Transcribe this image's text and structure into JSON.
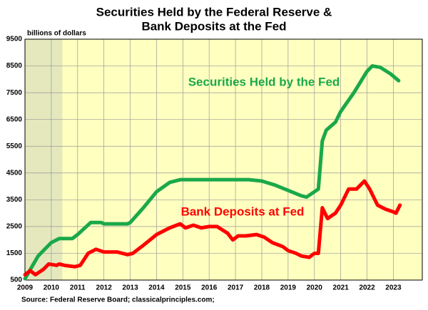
{
  "chart_data": {
    "type": "line",
    "title": [
      "Securities Held by the Federal Reserve &",
      "Bank Deposits at the Fed"
    ],
    "y_label": "billions of dollars",
    "source": "Source: Federal Reserve  Board; classicalprinciples.com;",
    "xlim": [
      2009,
      2024.1
    ],
    "xticks": [
      2009,
      2010,
      2011,
      2012,
      2013,
      2014,
      2015,
      2016,
      2017,
      2018,
      2019,
      2020,
      2021,
      2022,
      2023
    ],
    "ylim": [
      500,
      9500
    ],
    "yticks": [
      500,
      1500,
      2500,
      3500,
      4500,
      5500,
      6500,
      7500,
      8500,
      9500
    ],
    "grid": true,
    "shaded_range": [
      2009,
      2010.42
    ],
    "series": [
      {
        "name": "Securities Held by the Fed",
        "color": "#1aa84a",
        "x": [
          2009.0,
          2009.5,
          2010.0,
          2010.3,
          2010.8,
          2011.0,
          2011.5,
          2011.9,
          2012.0,
          2012.9,
          2013.0,
          2013.5,
          2014.0,
          2014.5,
          2014.9,
          2015.5,
          2016.5,
          2017.5,
          2018.0,
          2018.5,
          2019.0,
          2019.5,
          2019.7,
          2020.0,
          2020.15,
          2020.3,
          2020.45,
          2020.8,
          2021.0,
          2021.5,
          2022.0,
          2022.2,
          2022.5,
          2022.9,
          2023.2
        ],
        "values": [
          550,
          1400,
          1900,
          2050,
          2050,
          2200,
          2650,
          2650,
          2600,
          2600,
          2650,
          3200,
          3800,
          4150,
          4250,
          4250,
          4250,
          4250,
          4200,
          4050,
          3850,
          3650,
          3600,
          3800,
          3900,
          5700,
          6100,
          6400,
          6800,
          7500,
          8300,
          8500,
          8450,
          8200,
          7950
        ]
      },
      {
        "name": "Bank Deposits at Fed",
        "color": "#ff0000",
        "x": [
          2009.0,
          2009.2,
          2009.4,
          2009.7,
          2009.9,
          2010.2,
          2010.3,
          2010.5,
          2010.9,
          2011.1,
          2011.4,
          2011.7,
          2012.0,
          2012.5,
          2012.9,
          2013.1,
          2013.5,
          2014.0,
          2014.5,
          2014.9,
          2015.1,
          2015.4,
          2015.7,
          2016.0,
          2016.3,
          2016.7,
          2016.9,
          2017.1,
          2017.4,
          2017.8,
          2018.1,
          2018.4,
          2018.8,
          2019.0,
          2019.3,
          2019.5,
          2019.8,
          2020.0,
          2020.15,
          2020.3,
          2020.5,
          2020.8,
          2021.0,
          2021.3,
          2021.6,
          2021.9,
          2022.1,
          2022.4,
          2022.7,
          2023.0,
          2023.1,
          2023.25
        ],
        "values": [
          700,
          850,
          700,
          900,
          1100,
          1050,
          1100,
          1050,
          1000,
          1050,
          1500,
          1650,
          1550,
          1550,
          1450,
          1500,
          1800,
          2200,
          2450,
          2600,
          2450,
          2550,
          2450,
          2500,
          2500,
          2250,
          2000,
          2150,
          2150,
          2200,
          2100,
          1900,
          1750,
          1600,
          1500,
          1400,
          1350,
          1500,
          1500,
          3200,
          2800,
          3000,
          3300,
          3900,
          3900,
          4200,
          3900,
          3300,
          3150,
          3050,
          3000,
          3300
        ]
      }
    ]
  }
}
